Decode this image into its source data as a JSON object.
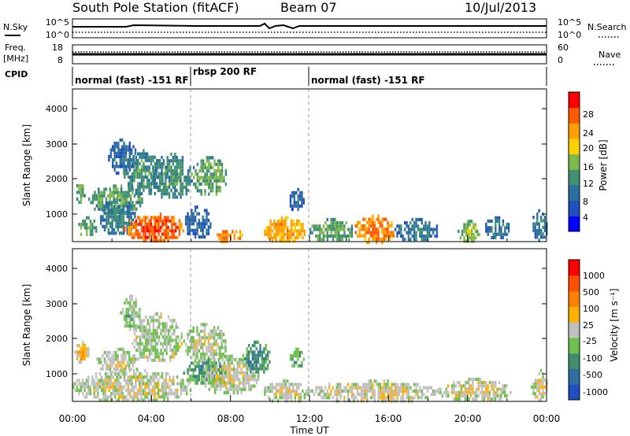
{
  "header": {
    "title": "South Pole Station (fitACF)",
    "beam": "Beam 07",
    "date": "10/Jul/2013"
  },
  "panels": {
    "nsky_label": "N.Sky",
    "nsky_ticks": [
      "10^5",
      "10^0"
    ],
    "nsearch_label": "N.Search",
    "nsearch_ticks": [
      "10^5",
      "10^0"
    ],
    "freq_label_line1": "Freq.",
    "freq_label_line2": "[MHz]",
    "freq_ticks": [
      "18",
      "8"
    ],
    "nave_label": "Nave",
    "nave_ticks": [
      "60",
      "0"
    ],
    "cpid_label": "CPID"
  },
  "cpid_segments": [
    {
      "start_hour": 0,
      "end_hour": 6,
      "label": "normal (fast) -151 RF"
    },
    {
      "start_hour": 6,
      "end_hour": 12,
      "label": "rbsp 200 RF"
    },
    {
      "start_hour": 12,
      "end_hour": 24,
      "label": "normal (fast) -151 RF"
    }
  ],
  "x_axis": {
    "label": "Time UT",
    "ticks": [
      "00:00",
      "04:00",
      "08:00",
      "12:00",
      "16:00",
      "20:00",
      "00:00"
    ],
    "range_hours": [
      0,
      24
    ]
  },
  "chart_data": [
    {
      "type": "heatmap",
      "title": "",
      "xlabel": "Time UT",
      "ylabel": "Slant Range [km]",
      "xlim_hours": [
        0,
        24
      ],
      "ylim_km": [
        180,
        4500
      ],
      "y_ticks": [
        "1000",
        "2000",
        "3000",
        "4000"
      ],
      "colorbar": {
        "label": "Power [dB]",
        "ticks": [
          "28",
          "24",
          "20",
          "16",
          "12",
          "8",
          "4"
        ],
        "range": [
          0,
          30
        ],
        "colors": [
          "#0000ff",
          "#1f4fbf",
          "#2a6f9f",
          "#3f9070",
          "#7fb84a",
          "#ffd000",
          "#ffa000",
          "#ff5a00",
          "#ff0000"
        ]
      },
      "clusters": [
        {
          "t": [
            0.2,
            1.2
          ],
          "r": [
            350,
            900
          ],
          "v": 14
        },
        {
          "t": [
            0.1,
            0.6
          ],
          "r": [
            1300,
            1900
          ],
          "v": 14
        },
        {
          "t": [
            0.8,
            3.5
          ],
          "r": [
            1000,
            1800
          ],
          "v": 14
        },
        {
          "t": [
            1.3,
            3.2
          ],
          "r": [
            400,
            1400
          ],
          "v": 10
        },
        {
          "t": [
            2.6,
            5.6
          ],
          "r": [
            180,
            1000
          ],
          "v": 26
        },
        {
          "t": [
            1.8,
            3.2
          ],
          "r": [
            2100,
            3100
          ],
          "v": 9
        },
        {
          "t": [
            2.6,
            4.6
          ],
          "r": [
            1500,
            2800
          ],
          "v": 12
        },
        {
          "t": [
            4.0,
            6.0
          ],
          "r": [
            1400,
            2700
          ],
          "v": 12
        },
        {
          "t": [
            6.0,
            7.8
          ],
          "r": [
            1500,
            2600
          ],
          "v": 14
        },
        {
          "t": [
            5.6,
            7.0
          ],
          "r": [
            300,
            1200
          ],
          "v": 8
        },
        {
          "t": [
            7.2,
            8.6
          ],
          "r": [
            180,
            600
          ],
          "v": 24
        },
        {
          "t": [
            9.6,
            11.8
          ],
          "r": [
            180,
            900
          ],
          "v": 22
        },
        {
          "t": [
            10.9,
            11.7
          ],
          "r": [
            1100,
            1700
          ],
          "v": 8
        },
        {
          "t": [
            12.0,
            14.2
          ],
          "r": [
            200,
            850
          ],
          "v": 14
        },
        {
          "t": [
            14.2,
            16.3
          ],
          "r": [
            180,
            950
          ],
          "v": 24
        },
        {
          "t": [
            16.3,
            18.5
          ],
          "r": [
            200,
            850
          ],
          "v": 10
        },
        {
          "t": [
            19.5,
            20.6
          ],
          "r": [
            200,
            800
          ],
          "v": 16
        },
        {
          "t": [
            20.8,
            22.2
          ],
          "r": [
            300,
            900
          ],
          "v": 10
        },
        {
          "t": [
            23.2,
            24.0
          ],
          "r": [
            200,
            1100
          ],
          "v": 10
        }
      ]
    },
    {
      "type": "heatmap",
      "title": "",
      "xlabel": "Time UT",
      "ylabel": "Slant Range [km]",
      "xlim_hours": [
        0,
        24
      ],
      "ylim_km": [
        180,
        4500
      ],
      "y_ticks": [
        "1000",
        "2000",
        "3000",
        "4000"
      ],
      "colorbar": {
        "label": "Velocity [m s⁻¹]",
        "ticks": [
          "1000",
          "500",
          "100",
          "25",
          "-25",
          "-100",
          "-500",
          "-1000"
        ],
        "range": [
          -1200,
          1200
        ],
        "colors": [
          "#1f4fbf",
          "#2f6f9f",
          "#3f8f6f",
          "#70c050",
          "#c0c0c0",
          "#ffb000",
          "#ff8000",
          "#ff5000",
          "#ff0000"
        ]
      },
      "clusters": [
        {
          "t": [
            0.0,
            6.0
          ],
          "r": [
            180,
            1100
          ],
          "v": 60
        },
        {
          "t": [
            0.1,
            0.8
          ],
          "r": [
            1300,
            1900
          ],
          "v": 300
        },
        {
          "t": [
            1.2,
            3.4
          ],
          "r": [
            1000,
            1700
          ],
          "v": 60
        },
        {
          "t": [
            2.4,
            3.4
          ],
          "r": [
            2200,
            3200
          ],
          "v": -300
        },
        {
          "t": [
            3.0,
            5.5
          ],
          "r": [
            1300,
            2700
          ],
          "v": -200
        },
        {
          "t": [
            5.6,
            7.8
          ],
          "r": [
            1300,
            2400
          ],
          "v": 0
        },
        {
          "t": [
            5.6,
            7.8
          ],
          "r": [
            700,
            1400
          ],
          "v": -600
        },
        {
          "t": [
            6.5,
            9.4
          ],
          "r": [
            400,
            1500
          ],
          "v": 60
        },
        {
          "t": [
            8.6,
            10.0
          ],
          "r": [
            1000,
            1900
          ],
          "v": -600
        },
        {
          "t": [
            9.6,
            12.0
          ],
          "r": [
            180,
            800
          ],
          "v": 60
        },
        {
          "t": [
            10.9,
            11.7
          ],
          "r": [
            1100,
            1700
          ],
          "v": -400
        },
        {
          "t": [
            12.0,
            18.5
          ],
          "r": [
            180,
            800
          ],
          "v": 80
        },
        {
          "t": [
            18.5,
            22.2
          ],
          "r": [
            200,
            850
          ],
          "v": 80
        },
        {
          "t": [
            23.2,
            24.0
          ],
          "r": [
            200,
            1100
          ],
          "v": 80
        }
      ]
    }
  ]
}
